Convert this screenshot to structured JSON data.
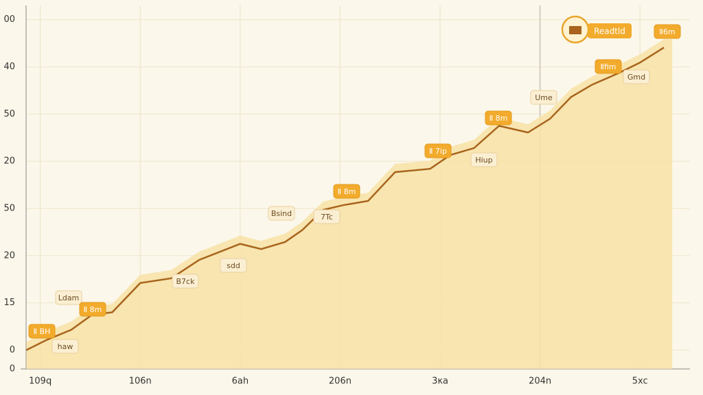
{
  "chart_data": {
    "type": "area-line",
    "x": [
      -0.14,
      0.07,
      0.31,
      0.52,
      0.72,
      1.0,
      1.31,
      1.59,
      2.0,
      2.21,
      2.45,
      2.62,
      2.83,
      3.03,
      3.28,
      3.55,
      3.9,
      4.1,
      4.34,
      4.59,
      4.88,
      5.1,
      5.31,
      5.52,
      5.79,
      6.0,
      6.24
    ],
    "series": [
      {
        "name": "Readtld",
        "color": "#a8641c",
        "values": [
          0,
          0.22,
          0.43,
          0.75,
          0.8,
          1.42,
          1.52,
          1.91,
          2.25,
          2.14,
          2.29,
          2.54,
          2.97,
          3.07,
          3.16,
          3.77,
          3.84,
          4.13,
          4.28,
          4.75,
          4.61,
          4.9,
          5.36,
          5.62,
          5.87,
          6.09,
          6.41
        ]
      }
    ],
    "area_color": "#f7e2a6",
    "xlim": [
      -0.3,
      6.5
    ],
    "xticks": [
      {
        "value": 0,
        "label": "109q"
      },
      {
        "value": 1,
        "label": "106n"
      },
      {
        "value": 2,
        "label": "6ah"
      },
      {
        "value": 3,
        "label": "206n"
      },
      {
        "value": 4,
        "label": "3κa"
      },
      {
        "value": 5,
        "label": "204n"
      },
      {
        "value": 6,
        "label": "5xc"
      }
    ],
    "ylim": [
      -0.4,
      7.3
    ],
    "yticks": [
      {
        "value": -0.4,
        "label": "0"
      },
      0,
      {
        "value": 1,
        "label": "15"
      },
      {
        "value": 2,
        "label": "20"
      },
      {
        "value": 3,
        "label": "50"
      },
      {
        "value": 4,
        "label": "20"
      },
      {
        "value": 5,
        "label": "50"
      },
      {
        "value": 6,
        "label": "40"
      },
      {
        "value": 7,
        "label": "00"
      }
    ],
    "grid": true,
    "legend": "top-right",
    "annotations": [
      "Ⅱ BH",
      "Ldam",
      "haw",
      "B7ck",
      "Ⅱ 8m",
      "sdd",
      "Bsind",
      "7Tc",
      "Ⅱ 8m",
      "Ⅱ 7ip",
      "Hiup",
      "Ⅱ 8m",
      "Ume",
      "Ⅱfim",
      "Gmd",
      "Ⅱ6m"
    ]
  }
}
